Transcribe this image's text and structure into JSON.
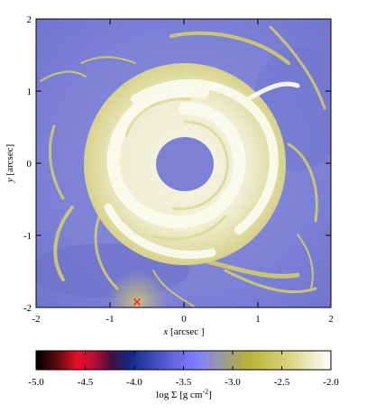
{
  "image": {
    "x_axis": {
      "label_var": "x",
      "label_unit": "[arcsec ]",
      "ticks": [
        "-2",
        "-1",
        "0",
        "1",
        "2"
      ]
    },
    "y_axis": {
      "label_var": "y",
      "label_unit": "[arcsec]",
      "ticks": [
        "-2",
        "-1",
        "0",
        "1",
        "2"
      ]
    },
    "colorbar": {
      "ticks": [
        "-5.0",
        "-4.5",
        "-4.0",
        "-3.5",
        "-3.0",
        "-2.5",
        "-2.0"
      ],
      "label_prefix": "log Σ [g cm",
      "label_exp": "-2",
      "label_suffix": "]",
      "colors": [
        "#000000",
        "#e8102a",
        "#5a0f2e",
        "#1a2f8c",
        "#7f7fff",
        "#b8b233",
        "#ffffff"
      ]
    },
    "marker_symbol": "×",
    "colors": {
      "background": "#7c81d6",
      "gas": "#d7d18a",
      "spiral": "#f1f1d6",
      "marker": "#ff2020"
    }
  }
}
